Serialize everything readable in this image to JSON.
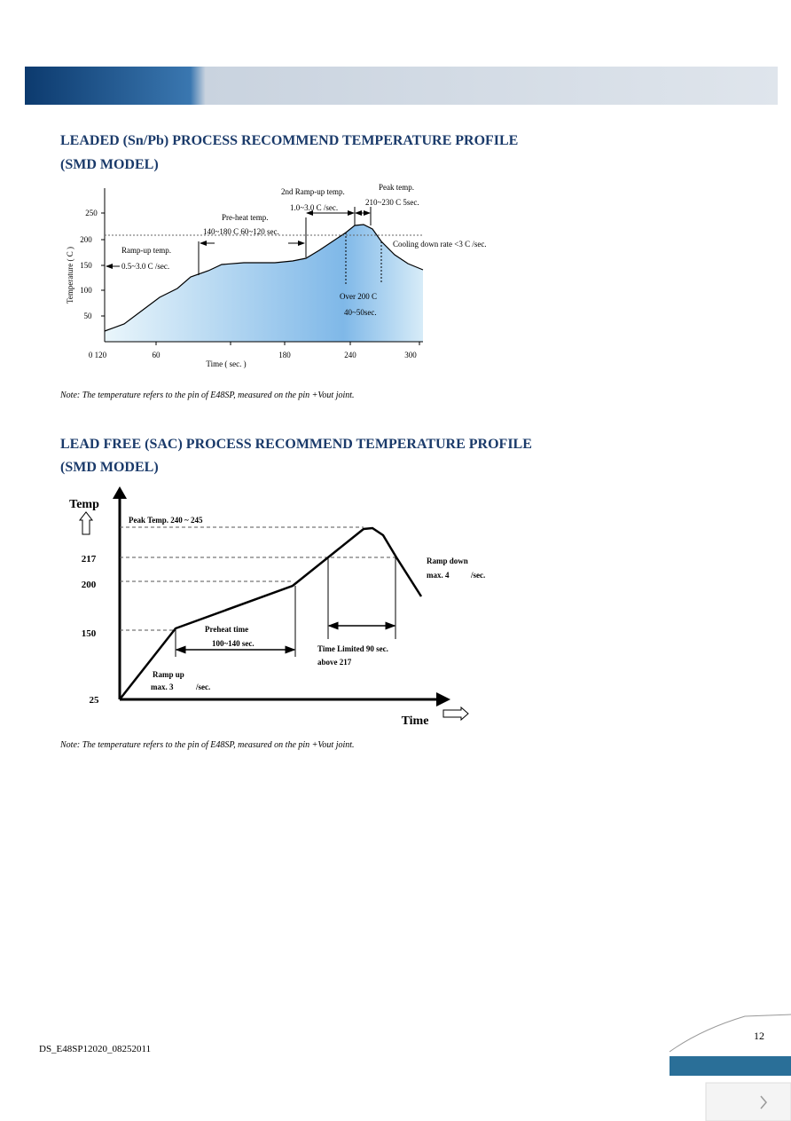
{
  "section1": {
    "title": [
      "LEADED (Sn/Pb) PROCESS RECOMMEND TEMPERATURE PROFILE",
      "(SMD MODEL)"
    ],
    "chart": {
      "y_label": "Temperature ( C )",
      "x_label": "Time ( sec. )",
      "y_tick_labels": [
        "250",
        "200",
        "150",
        "100",
        "50"
      ],
      "x_tick_labels": [
        "0 120",
        "60",
        "180",
        "240",
        "300"
      ],
      "annotations": [
        "Ramp-up temp.",
        "0.5~3.0 C /sec.",
        "Pre-heat temp.",
        "140~180 C 60~120 sec.",
        "2nd Ramp-up temp.",
        "1.0~3.0 C /sec.",
        "Peak temp.",
        "210~230 C 5sec.",
        "Cooling down rate <3 C /sec.",
        "Over 200 C",
        "40~50sec."
      ]
    },
    "note": "Note: The temperature refers to the pin of E48SP, measured on the pin +Vout joint."
  },
  "section2": {
    "title": [
      "LEAD FREE (SAC) PROCESS RECOMMEND TEMPERATURE PROFILE",
      "(SMD MODEL)"
    ],
    "chart": {
      "y_label": "Temp",
      "x_label": "Time",
      "y_tick_labels": [
        "217",
        "200",
        "150",
        "25"
      ],
      "annotations": [
        "Peak Temp. 240 ~ 245",
        "Ramp down",
        "max. 4",
        "/sec.",
        "Preheat time",
        "100~140 sec.",
        "Time Limited 90 sec.",
        "above 217",
        "Ramp up",
        "max. 3",
        "/sec."
      ]
    },
    "note": "Note: The temperature refers to the pin of E48SP, measured on the pin +Vout joint."
  },
  "footer": {
    "doc_id": "DS_E48SP12020_08252011",
    "page": "12"
  }
}
